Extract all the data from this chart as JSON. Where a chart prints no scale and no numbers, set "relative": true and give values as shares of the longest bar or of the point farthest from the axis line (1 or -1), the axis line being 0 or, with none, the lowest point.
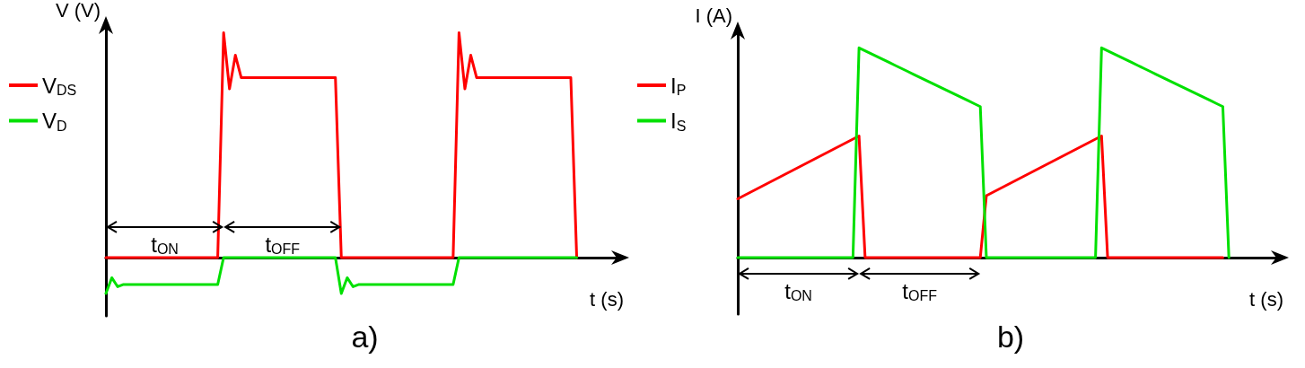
{
  "chart_data": [
    {
      "type": "line",
      "title": "a)",
      "xlabel": "t (s)",
      "ylabel": "V (V)",
      "relative": true,
      "grid": false,
      "legend": "top left",
      "marker": "none",
      "line_style": "solid",
      "categories": [
        null,
        null,
        null,
        null,
        null,
        null,
        null,
        null,
        null,
        null,
        null,
        null,
        null,
        null,
        null,
        null,
        null,
        null,
        null,
        null,
        null,
        null,
        null,
        null,
        null,
        null,
        null,
        null,
        null,
        null,
        null,
        null,
        null,
        null,
        null,
        null,
        null,
        null,
        null,
        null,
        null,
        null,
        null,
        null,
        null,
        null,
        null,
        null,
        null,
        null,
        null,
        null,
        null,
        null,
        null,
        null,
        null,
        null,
        null,
        null,
        null,
        null,
        null,
        null,
        null,
        null,
        null,
        null,
        null,
        null,
        null,
        null,
        null,
        null,
        null,
        null,
        null,
        null,
        null,
        null,
        null,
        null,
        null,
        null,
        null,
        null,
        null,
        null,
        null
      ],
      "series": [
        {
          "name": "V$_{DS}$",
          "color": "#ff0000",
          "values": [
            0,
            0,
            0,
            0,
            0,
            0,
            0,
            0,
            0,
            0,
            0,
            0,
            0,
            0,
            0,
            0,
            0,
            0,
            0,
            0,
            1,
            0.75,
            0.9,
            0.8,
            0.8,
            0.8,
            0.8,
            0.8,
            0.8,
            0.8,
            0.8,
            0.8,
            0.8,
            0.8,
            0.8,
            0.8,
            0.8,
            0.8,
            0.8,
            0.8,
            0,
            0,
            0,
            0,
            0,
            0,
            0,
            0,
            0,
            0,
            0,
            0,
            0,
            0,
            0,
            0,
            0,
            0,
            0,
            0,
            1,
            0.75,
            0.9,
            0.8,
            0.8,
            0.8,
            0.8,
            0.8,
            0.8,
            0.8,
            0.8,
            0.8,
            0.8,
            0.8,
            0.8,
            0.8,
            0.8,
            0.8,
            0.8,
            0.8,
            0,
            null,
            null,
            null,
            null,
            null,
            null,
            null,
            null
          ]
        },
        {
          "name": "V$_{D}$",
          "color": "#00e000",
          "values": [
            -0.16,
            -0.09,
            -0.13,
            -0.12,
            -0.12,
            -0.12,
            -0.12,
            -0.12,
            -0.12,
            -0.12,
            -0.12,
            -0.12,
            -0.12,
            -0.12,
            -0.12,
            -0.12,
            -0.12,
            -0.12,
            -0.12,
            -0.12,
            0,
            0,
            0,
            0,
            0,
            0,
            0,
            0,
            0,
            0,
            0,
            0,
            0,
            0,
            0,
            0,
            0,
            0,
            0,
            0,
            -0.16,
            -0.09,
            -0.13,
            -0.12,
            -0.12,
            -0.12,
            -0.12,
            -0.12,
            -0.12,
            -0.12,
            -0.12,
            -0.12,
            -0.12,
            -0.12,
            -0.12,
            -0.12,
            -0.12,
            -0.12,
            -0.12,
            -0.12,
            0,
            0,
            0,
            0,
            0,
            0,
            0,
            0,
            0,
            0,
            0,
            0,
            0,
            0,
            0,
            0,
            0,
            0,
            0,
            0,
            0,
            null,
            null,
            null,
            null,
            null,
            null,
            null,
            null
          ]
        }
      ],
      "annotations": [
        "t$_{ON}$",
        "t$_{OFF}$"
      ]
    },
    {
      "type": "line",
      "title": "b)",
      "xlabel": "t (s)",
      "ylabel": "I (A)",
      "relative": true,
      "grid": false,
      "legend": "top left",
      "marker": "none",
      "line_style": "solid",
      "categories": [
        null,
        null,
        null,
        null,
        null,
        null,
        null,
        null,
        null,
        null,
        null,
        null,
        null,
        null,
        null,
        null,
        null,
        null,
        null,
        null,
        null,
        null,
        null,
        null,
        null,
        null,
        null,
        null,
        null,
        null,
        null,
        null,
        null,
        null,
        null,
        null,
        null,
        null,
        null,
        null,
        null,
        null,
        null,
        null,
        null,
        null,
        null,
        null,
        null,
        null,
        null,
        null,
        null,
        null,
        null,
        null,
        null,
        null,
        null,
        null,
        null,
        null,
        null,
        null,
        null,
        null,
        null,
        null,
        null,
        null,
        null,
        null,
        null,
        null,
        null,
        null,
        null,
        null,
        null,
        null,
        null,
        null,
        null,
        null,
        null,
        null,
        null,
        null,
        null,
        null,
        null
      ],
      "series": [
        {
          "name": "I$_{P}$",
          "color": "#ff0000",
          "values": [
            0.28,
            0.295,
            0.31,
            0.325,
            0.34,
            0.355,
            0.37,
            0.385,
            0.4,
            0.415,
            0.43,
            0.445,
            0.46,
            0.475,
            0.49,
            0.505,
            0.52,
            0.535,
            0.55,
            0.565,
            0.58,
            0,
            0,
            0,
            0,
            0,
            0,
            0,
            0,
            0,
            0,
            0,
            0,
            0,
            0,
            0,
            0,
            0,
            0,
            0,
            0,
            0.295,
            0.31,
            0.325,
            0.34,
            0.355,
            0.37,
            0.385,
            0.4,
            0.415,
            0.43,
            0.445,
            0.46,
            0.475,
            0.49,
            0.505,
            0.52,
            0.535,
            0.55,
            0.565,
            0.58,
            0,
            0,
            0,
            0,
            0,
            0,
            0,
            0,
            0,
            0,
            0,
            0,
            0,
            0,
            0,
            0,
            0,
            0,
            0,
            0,
            null,
            null,
            null,
            null,
            null,
            null,
            null,
            null,
            null,
            null
          ]
        },
        {
          "name": "I$_{S}$",
          "color": "#00e000",
          "values": [
            0,
            0,
            0,
            0,
            0,
            0,
            0,
            0,
            0,
            0,
            0,
            0,
            0,
            0,
            0,
            0,
            0,
            0,
            0,
            0,
            1,
            0.986,
            0.972,
            0.958,
            0.944,
            0.93,
            0.916,
            0.902,
            0.888,
            0.874,
            0.86,
            0.846,
            0.832,
            0.818,
            0.804,
            0.79,
            0.776,
            0.762,
            0.748,
            0.734,
            0.72,
            0,
            0,
            0,
            0,
            0,
            0,
            0,
            0,
            0,
            0,
            0,
            0,
            0,
            0,
            0,
            0,
            0,
            0,
            0,
            1,
            0.986,
            0.972,
            0.958,
            0.944,
            0.93,
            0.916,
            0.902,
            0.888,
            0.874,
            0.86,
            0.846,
            0.832,
            0.818,
            0.804,
            0.79,
            0.776,
            0.762,
            0.748,
            0.734,
            0.72,
            0,
            null,
            null,
            null,
            null,
            null,
            null,
            null,
            null,
            null
          ]
        }
      ],
      "annotations": [
        "t$_{ON}$",
        "t$_{OFF}$"
      ]
    }
  ]
}
